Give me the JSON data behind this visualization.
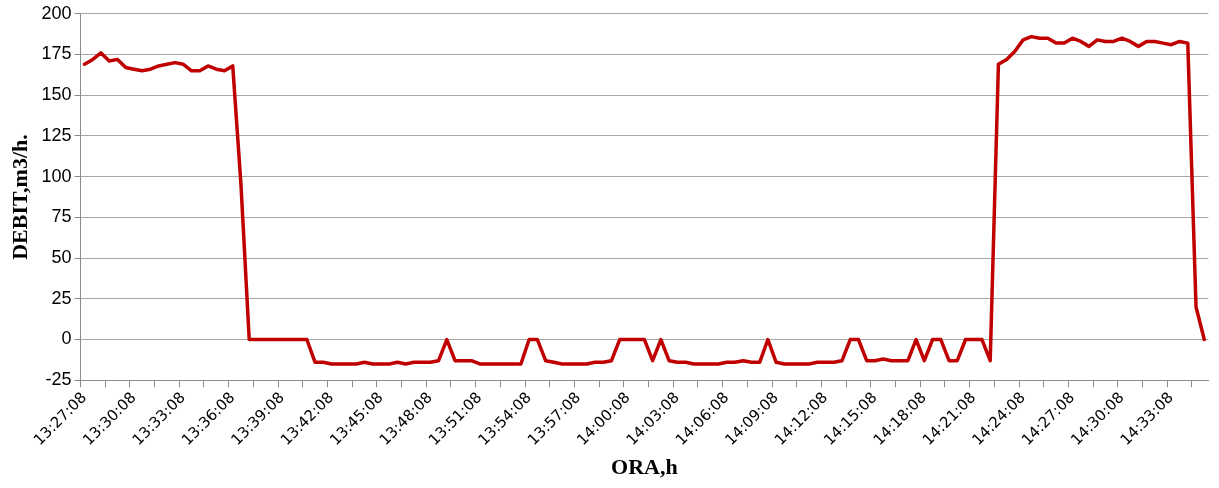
{
  "chart_data": {
    "type": "line",
    "xlabel": "ORA,h",
    "ylabel": "DEBIT,m3/h.",
    "categories": [
      "13:27:08",
      null,
      null,
      null,
      null,
      null,
      "13:30:08",
      null,
      null,
      null,
      null,
      null,
      "13:33:08",
      null,
      null,
      null,
      null,
      null,
      "13:36:08",
      null,
      null,
      null,
      null,
      null,
      "13:39:08",
      null,
      null,
      null,
      null,
      null,
      "13:42:08",
      null,
      null,
      null,
      null,
      null,
      "13:45:08",
      null,
      null,
      null,
      null,
      null,
      "13:48:08",
      null,
      null,
      null,
      null,
      null,
      "13:51:08",
      null,
      null,
      null,
      null,
      null,
      "13:54:08",
      null,
      null,
      null,
      null,
      null,
      "13:57:08",
      null,
      null,
      null,
      null,
      null,
      "14:00:08",
      null,
      null,
      null,
      null,
      null,
      "14:03:08",
      null,
      null,
      null,
      null,
      null,
      "14:06:08",
      null,
      null,
      null,
      null,
      null,
      "14:09:08",
      null,
      null,
      null,
      null,
      null,
      "14:12:08",
      null,
      null,
      null,
      null,
      null,
      "14:15:08",
      null,
      null,
      null,
      null,
      null,
      "14:18:08",
      null,
      null,
      null,
      null,
      null,
      "14:21:08",
      null,
      null,
      null,
      null,
      null,
      "14:24:08",
      null,
      null,
      null,
      null,
      null,
      "14:27:08",
      null,
      null,
      null,
      null,
      null,
      "14:30:08",
      null,
      null,
      null,
      null,
      null,
      "14:33:08",
      null,
      null,
      null,
      null
    ],
    "series": [
      {
        "color": "#c00000",
        "values": [
          169,
          172,
          176,
          171,
          172,
          167,
          166,
          165,
          166,
          168,
          169,
          170,
          169,
          165,
          165,
          168,
          166,
          165,
          168,
          95,
          0,
          0,
          0,
          0,
          0,
          0,
          0,
          0,
          -14,
          -14,
          -15,
          -15,
          -15,
          -15,
          -14,
          -15,
          -15,
          -15,
          -14,
          -15,
          -14,
          -14,
          -14,
          -13,
          0,
          -13,
          -13,
          -13,
          -15,
          -15,
          -15,
          -15,
          -15,
          -15,
          0,
          0,
          -13,
          -14,
          -15,
          -15,
          -15,
          -15,
          -14,
          -14,
          -13,
          0,
          0,
          0,
          0,
          -13,
          0,
          -13,
          -14,
          -14,
          -15,
          -15,
          -15,
          -15,
          -14,
          -14,
          -13,
          -14,
          -14,
          0,
          -14,
          -15,
          -15,
          -15,
          -15,
          -14,
          -14,
          -14,
          -13,
          0,
          0,
          -13,
          -13,
          -12,
          -13,
          -13,
          -13,
          0,
          -13,
          0,
          0,
          -13,
          -13,
          0,
          0,
          0,
          -13,
          169,
          172,
          177,
          184,
          186,
          185,
          185,
          182,
          182,
          185,
          183,
          180,
          184,
          183,
          183,
          185,
          183,
          180,
          183,
          183,
          182,
          181,
          183,
          182,
          20,
          0
        ]
      }
    ],
    "ylim": [
      -25,
      200
    ],
    "yticks": [
      -25,
      0,
      25,
      50,
      75,
      100,
      125,
      150,
      175,
      200
    ],
    "grid": "y",
    "legend": false,
    "marker": "none",
    "line_style": "solid"
  }
}
